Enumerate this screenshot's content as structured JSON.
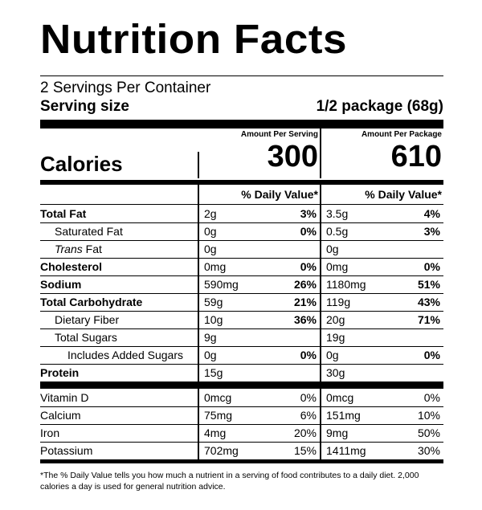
{
  "title": "Nutrition Facts",
  "servings_per_container": "2 Servings Per Container",
  "serving_size_label": "Serving size",
  "serving_size_value": "1/2 package (68g)",
  "header": {
    "per_serving_caption": "Amount Per Serving",
    "per_package_caption": "Amount Per Package",
    "calories_label": "Calories",
    "calories_serving": "300",
    "calories_package": "610",
    "dv_header": "% Daily Value*"
  },
  "nutrients": [
    {
      "name": "Total Fat",
      "serving_amt": "2g",
      "serving_dv": "3%",
      "package_amt": "3.5g",
      "package_dv": "4%"
    },
    {
      "name": "Saturated Fat",
      "serving_amt": "0g",
      "serving_dv": "0%",
      "package_amt": "0.5g",
      "package_dv": "3%"
    },
    {
      "name_italic": "Trans",
      "name_rest": " Fat",
      "serving_amt": "0g",
      "serving_dv": "",
      "package_amt": "0g",
      "package_dv": ""
    },
    {
      "name": "Cholesterol",
      "serving_amt": "0mg",
      "serving_dv": "0%",
      "package_amt": "0mg",
      "package_dv": "0%"
    },
    {
      "name": "Sodium",
      "serving_amt": "590mg",
      "serving_dv": "26%",
      "package_amt": "1180mg",
      "package_dv": "51%"
    },
    {
      "name": "Total Carbohydrate",
      "serving_amt": "59g",
      "serving_dv": "21%",
      "package_amt": "119g",
      "package_dv": "43%"
    },
    {
      "name": "Dietary Fiber",
      "serving_amt": "10g",
      "serving_dv": "36%",
      "package_amt": "20g",
      "package_dv": "71%"
    },
    {
      "name": "Total Sugars",
      "serving_amt": "9g",
      "serving_dv": "",
      "package_amt": "19g",
      "package_dv": ""
    },
    {
      "name": "Includes Added Sugars",
      "serving_amt": "0g",
      "serving_dv": "0%",
      "package_amt": "0g",
      "package_dv": "0%"
    },
    {
      "name": "Protein",
      "serving_amt": "15g",
      "serving_dv": "",
      "package_amt": "30g",
      "package_dv": ""
    }
  ],
  "vitamins": [
    {
      "name": "Vitamin D",
      "serving_amt": "0mcg",
      "serving_dv": "0%",
      "package_amt": "0mcg",
      "package_dv": "0%"
    },
    {
      "name": "Calcium",
      "serving_amt": "75mg",
      "serving_dv": "6%",
      "package_amt": "151mg",
      "package_dv": "10%"
    },
    {
      "name": "Iron",
      "serving_amt": "4mg",
      "serving_dv": "20%",
      "package_amt": "9mg",
      "package_dv": "50%"
    },
    {
      "name": "Potassium",
      "serving_amt": "702mg",
      "serving_dv": "15%",
      "package_amt": "1411mg",
      "package_dv": "30%"
    }
  ],
  "footnote": "*The % Daily Value tells you how much a nutrient in a serving of food contributes to a daily diet. 2,000 calories a day is used for general nutrition advice."
}
